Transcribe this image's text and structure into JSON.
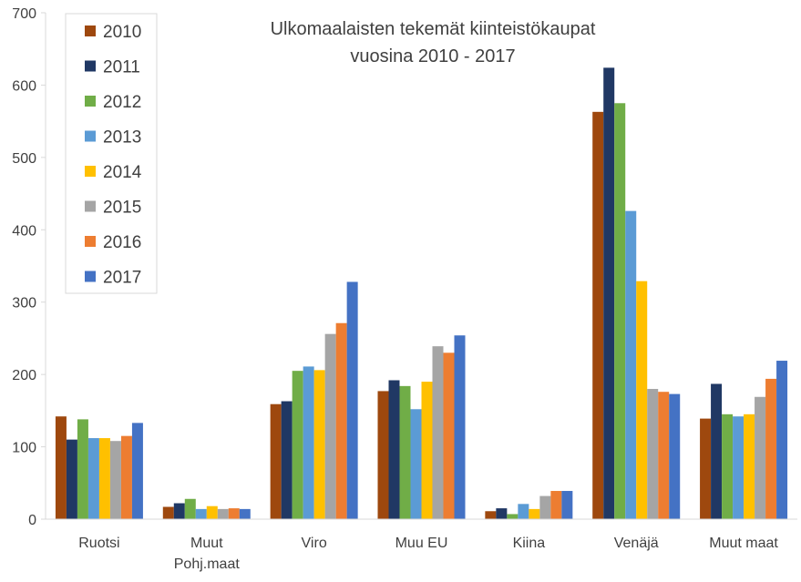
{
  "chart_data": {
    "type": "bar",
    "title": [
      "Ulkomaalaisten tekemät kiinteistökaupat",
      "vuosina 2010 - 2017"
    ],
    "xlabel": "",
    "ylabel": "",
    "ylim": [
      0,
      700
    ],
    "yticks": [
      0,
      100,
      200,
      300,
      400,
      500,
      600,
      700
    ],
    "grid": false,
    "legend_position": "top-left",
    "categories": [
      [
        "Ruotsi"
      ],
      [
        "Muut",
        "Pohj.maat"
      ],
      [
        "Viro"
      ],
      [
        "Muu EU"
      ],
      [
        "Kiina"
      ],
      [
        "Venäjä"
      ],
      [
        "Muut maat"
      ]
    ],
    "series": [
      {
        "name": "2010",
        "color": "#9E480E",
        "values": [
          142,
          17,
          159,
          177,
          11,
          563,
          139
        ]
      },
      {
        "name": "2011",
        "color": "#203864",
        "values": [
          110,
          22,
          163,
          192,
          15,
          624,
          187
        ]
      },
      {
        "name": "2012",
        "color": "#70AD47",
        "values": [
          138,
          28,
          205,
          184,
          7,
          575,
          145
        ]
      },
      {
        "name": "2013",
        "color": "#5B9BD5",
        "values": [
          112,
          14,
          211,
          152,
          21,
          426,
          142
        ]
      },
      {
        "name": "2014",
        "color": "#FFC000",
        "values": [
          112,
          18,
          206,
          190,
          14,
          329,
          145
        ]
      },
      {
        "name": "2015",
        "color": "#A5A5A5",
        "values": [
          108,
          14,
          256,
          239,
          32,
          180,
          169
        ]
      },
      {
        "name": "2016",
        "color": "#ED7D31",
        "values": [
          115,
          15,
          271,
          230,
          39,
          176,
          194
        ]
      },
      {
        "name": "2017",
        "color": "#4472C4",
        "values": [
          133,
          14,
          328,
          254,
          39,
          173,
          219
        ]
      }
    ]
  }
}
